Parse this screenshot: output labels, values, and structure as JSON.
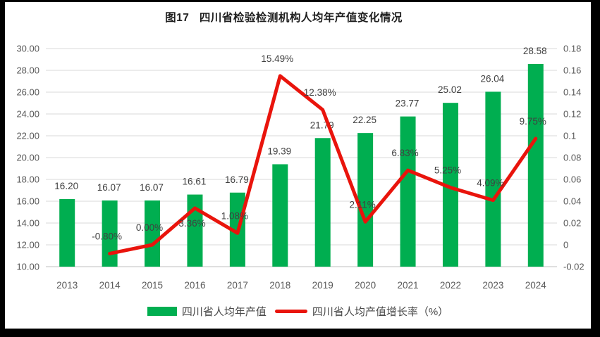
{
  "title": "图17   四川省检验检测机构人均年产值变化情况",
  "colors": {
    "bar": "#00AE50",
    "line": "#E9140C",
    "grid": "#D9D9D9",
    "baseline": "#BFBFBF",
    "axis_text": "#595959",
    "data_label_text": "#404040",
    "title_text": "#1F1F1F",
    "background": "#FFFFFF",
    "frame": "#000000"
  },
  "legend": {
    "items": [
      {
        "label": "四川省人均年产值",
        "type": "bar"
      },
      {
        "label": "四川省人均产值增长率（%）",
        "type": "line"
      }
    ]
  },
  "chart_data": {
    "type": "combo (bar + line)",
    "title": "图17   四川省检验检测机构人均年产值变化情况",
    "categories": [
      "2013",
      "2014",
      "2015",
      "2016",
      "2017",
      "2018",
      "2019",
      "2020",
      "2021",
      "2022",
      "2023",
      "2024"
    ],
    "series": [
      {
        "name": "四川省人均年产值",
        "type": "bar",
        "axis": "left",
        "values": [
          16.2,
          16.07,
          16.07,
          16.61,
          16.79,
          19.39,
          21.79,
          22.25,
          23.77,
          25.02,
          26.04,
          28.58
        ],
        "labels": [
          "16.20",
          "16.07",
          "16.07",
          "16.61",
          "16.79",
          "19.39",
          "21.79",
          "22.25",
          "23.77",
          "25.02",
          "26.04",
          "28.58"
        ]
      },
      {
        "name": "四川省人均产值增长率（%）",
        "type": "line",
        "axis": "right",
        "values_percent": [
          null,
          -0.8,
          0.0,
          3.36,
          1.08,
          15.49,
          12.38,
          2.11,
          6.83,
          5.25,
          4.09,
          9.75
        ],
        "labels": [
          "",
          "-0.80%",
          "0.00%",
          "3.36%",
          "1.08%",
          "15.49%",
          "12.38%",
          "2.11%",
          "6.83%",
          "5.25%",
          "4.09%",
          "9.75%"
        ]
      }
    ],
    "left_axis": {
      "min": 10,
      "max": 30,
      "step": 2,
      "tick_labels": [
        "10.00",
        "12.00",
        "14.00",
        "16.00",
        "18.00",
        "20.00",
        "22.00",
        "24.00",
        "26.00",
        "28.00",
        "30.00"
      ]
    },
    "right_axis": {
      "min": -0.02,
      "max": 0.18,
      "step": 0.02,
      "tick_labels": [
        "-0.02",
        "0",
        "0.02",
        "0.04",
        "0.06",
        "0.08",
        "0.1",
        "0.12",
        "0.14",
        "0.16",
        "0.18"
      ]
    },
    "layout_hints": {
      "grid": "horizontal",
      "legend_position": "bottom-center",
      "line_label_below_indices": [
        3
      ]
    }
  }
}
